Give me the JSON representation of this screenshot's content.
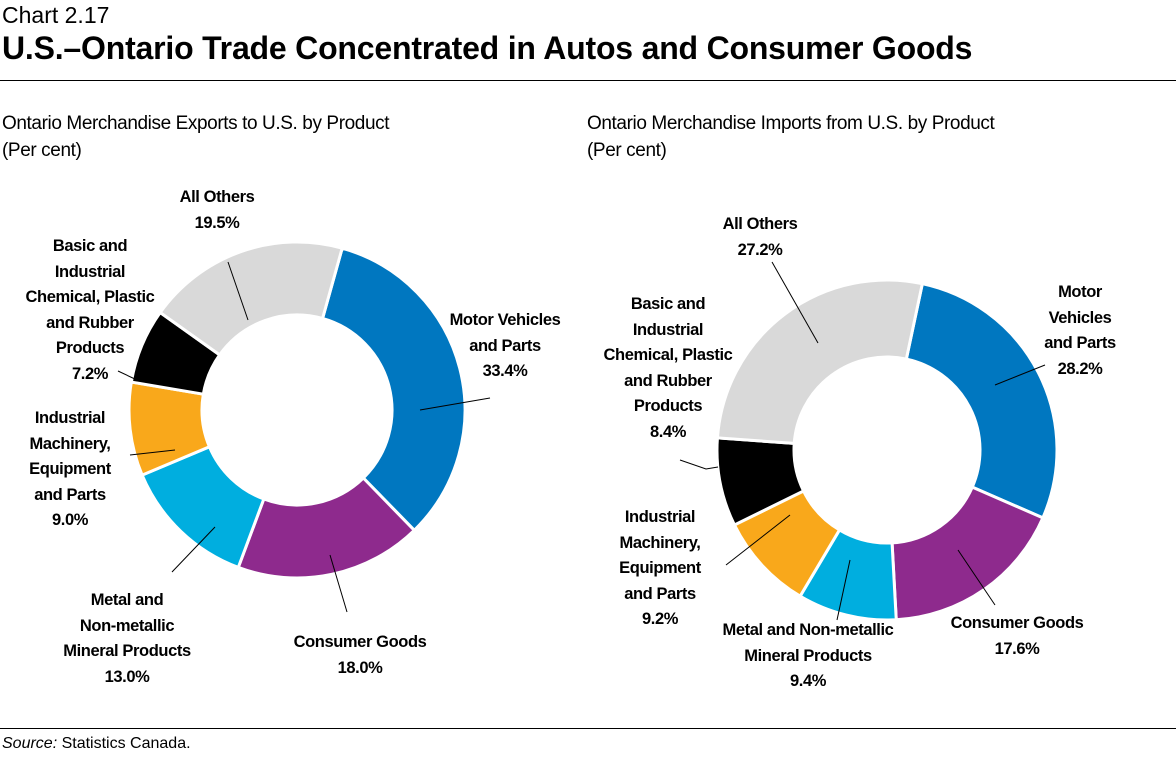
{
  "header": {
    "chart_number": "Chart 2.17",
    "title": "U.S.–Ontario Trade Concentrated in Autos and Consumer Goods"
  },
  "source": {
    "label": "Source:",
    "text": " Statistics Canada."
  },
  "chart_data": [
    {
      "type": "pie",
      "donut": true,
      "title": "Ontario Merchandise Exports to U.S. by Product",
      "subtitle": "(Per cent)",
      "categories": [
        "Motor Vehicles\nand Parts",
        "Consumer Goods",
        "Metal and\nNon-metallic\nMineral Products",
        "Industrial\nMachinery,\nEquipment\nand Parts",
        "Basic and\nIndustrial\nChemical, Plastic\nand Rubber\nProducts",
        "All Others"
      ],
      "values": [
        33.4,
        18.0,
        13.0,
        9.0,
        7.2,
        19.5
      ],
      "value_labels": [
        "33.4%",
        "18.0%",
        "13.0%",
        "9.0%",
        "7.2%",
        "19.5%"
      ],
      "colors": [
        "#0077C0",
        "#8E2A8D",
        "#00AEDF",
        "#F9A81B",
        "#000000",
        "#D9D9D9"
      ]
    },
    {
      "type": "pie",
      "donut": true,
      "title": "Ontario Merchandise Imports from U.S. by Product",
      "subtitle": "(Per cent)",
      "categories": [
        "Motor Vehicles\nand Parts",
        "Consumer Goods",
        "Metal and Non-metallic\nMineral Products",
        "Industrial\nMachinery,\nEquipment\nand Parts",
        "Basic and\nIndustrial\nChemical, Plastic\nand Rubber\nProducts",
        "All Others"
      ],
      "values": [
        28.2,
        17.6,
        9.4,
        9.2,
        8.4,
        27.2
      ],
      "value_labels": [
        "28.2%",
        "17.6%",
        "9.4%",
        "9.2%",
        "8.4%",
        "27.2%"
      ],
      "colors": [
        "#0077C0",
        "#8E2A8D",
        "#00AEDF",
        "#F9A81B",
        "#000000",
        "#D9D9D9"
      ]
    }
  ]
}
